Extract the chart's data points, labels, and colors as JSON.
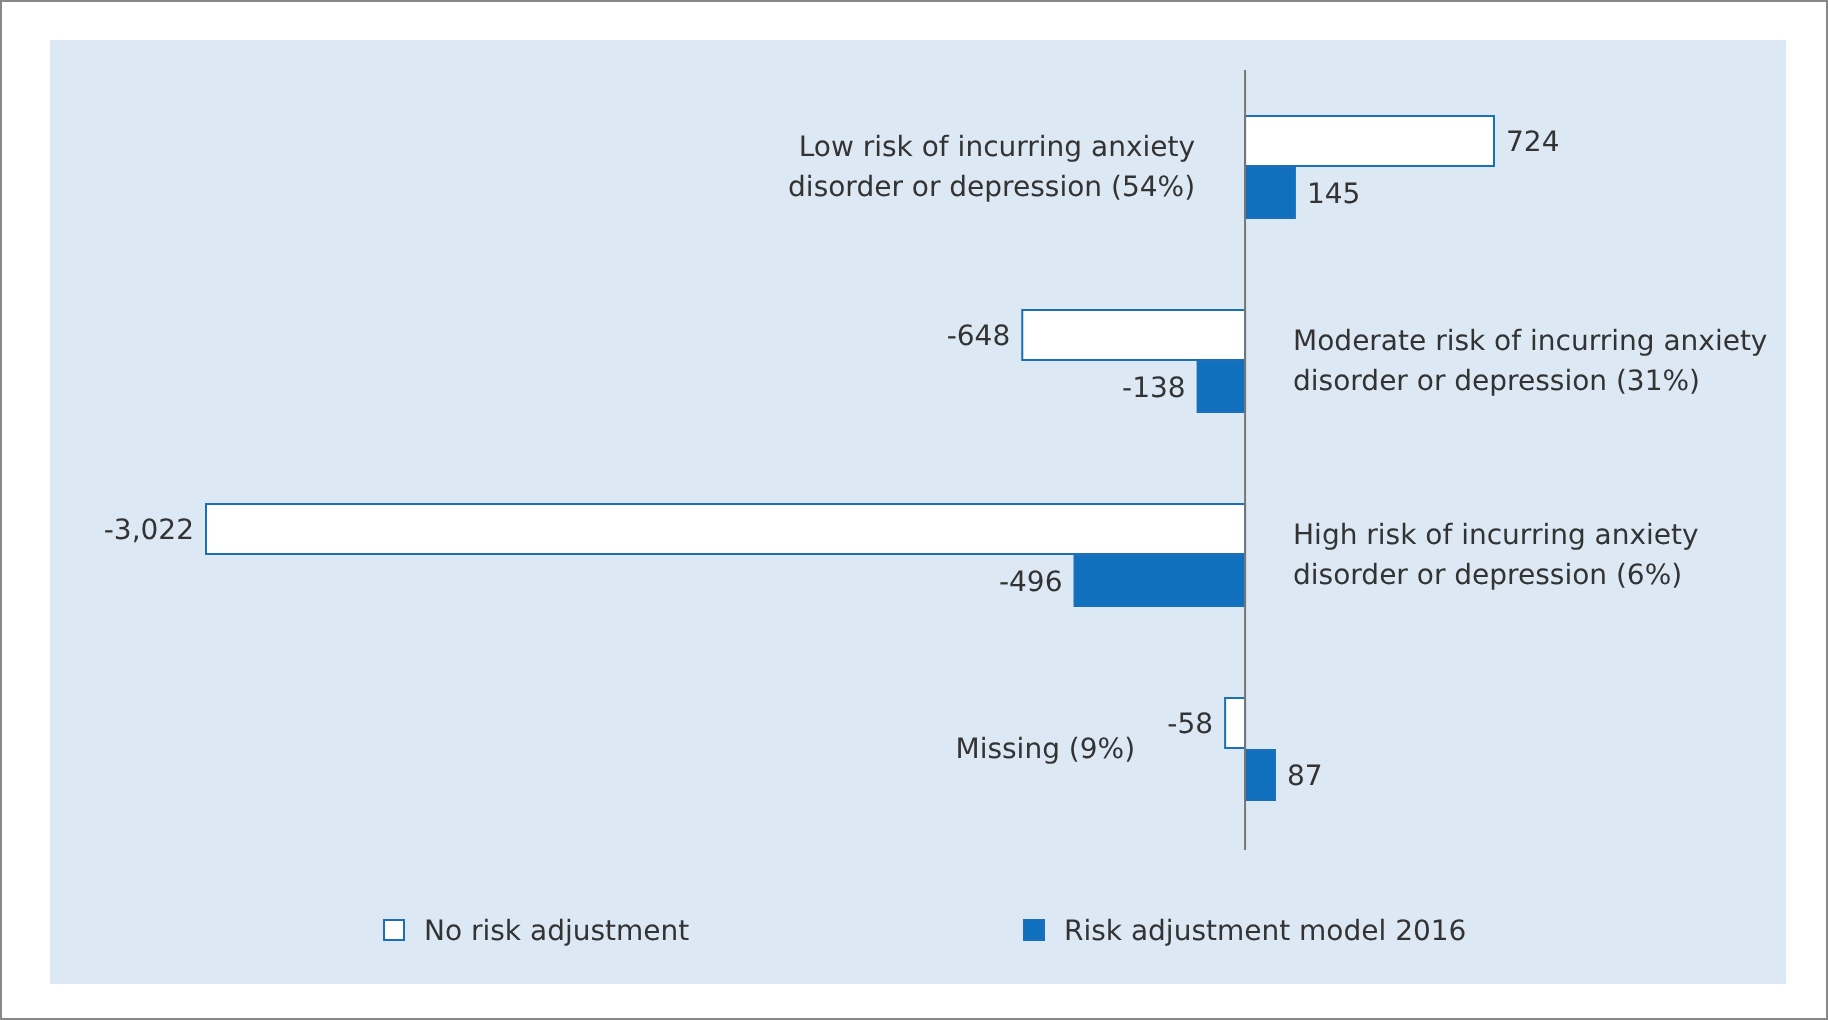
{
  "chart_data": {
    "type": "bar",
    "orientation": "horizontal",
    "categories": [
      "Low risk of incurring anxiety disorder or depression (54%)",
      "Moderate risk of incurring anxiety disorder or depression (31%)",
      "High risk of incurring anxiety disorder or depression (6%)",
      "Missing (9%)"
    ],
    "series": [
      {
        "name": "No risk adjustment",
        "color": "#ffffff",
        "values": [
          724,
          -648,
          -3022,
          -58
        ],
        "value_labels": [
          "724",
          "-648",
          "-3,022",
          "-58"
        ]
      },
      {
        "name": "Risk adjustment model 2016",
        "color": "#1170bd",
        "values": [
          145,
          -138,
          -496,
          87
        ],
        "value_labels": [
          "145",
          "-138",
          "-496",
          "87"
        ]
      }
    ],
    "legend": "bottom"
  }
}
